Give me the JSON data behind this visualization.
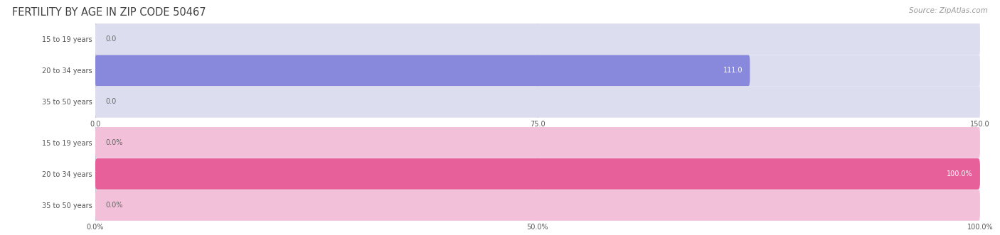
{
  "title": "FERTILITY BY AGE IN ZIP CODE 50467",
  "source": "Source: ZipAtlas.com",
  "top_chart": {
    "categories": [
      "15 to 19 years",
      "20 to 34 years",
      "35 to 50 years"
    ],
    "values": [
      0.0,
      111.0,
      0.0
    ],
    "xlim": [
      0,
      150
    ],
    "xticks": [
      0.0,
      75.0,
      150.0
    ],
    "xtick_labels": [
      "0.0",
      "75.0",
      "150.0"
    ],
    "bar_color": "#8888dd",
    "bar_bg_color": "#ddddf0",
    "label_color_inside": "#ffffff",
    "label_color_outside": "#666666"
  },
  "bottom_chart": {
    "categories": [
      "15 to 19 years",
      "20 to 34 years",
      "35 to 50 years"
    ],
    "values": [
      0.0,
      100.0,
      0.0
    ],
    "xlim": [
      0,
      100
    ],
    "xticks": [
      0.0,
      50.0,
      100.0
    ],
    "xtick_labels": [
      "0.0%",
      "50.0%",
      "100.0%"
    ],
    "bar_color": "#e8609a",
    "bar_bg_color": "#f2c0d8",
    "label_color_inside": "#ffffff",
    "label_color_outside": "#666666"
  },
  "background_color": "#ffffff",
  "title_color": "#404040",
  "title_fontsize": 10.5,
  "source_fontsize": 7.5,
  "label_fontsize": 7,
  "category_fontsize": 7,
  "axis_fontsize": 7,
  "bar_height": 0.52,
  "row_bg_color_odd": "#ebebf5",
  "row_bg_color_even": "#f3f3fa",
  "grid_color": "#bbbbcc"
}
